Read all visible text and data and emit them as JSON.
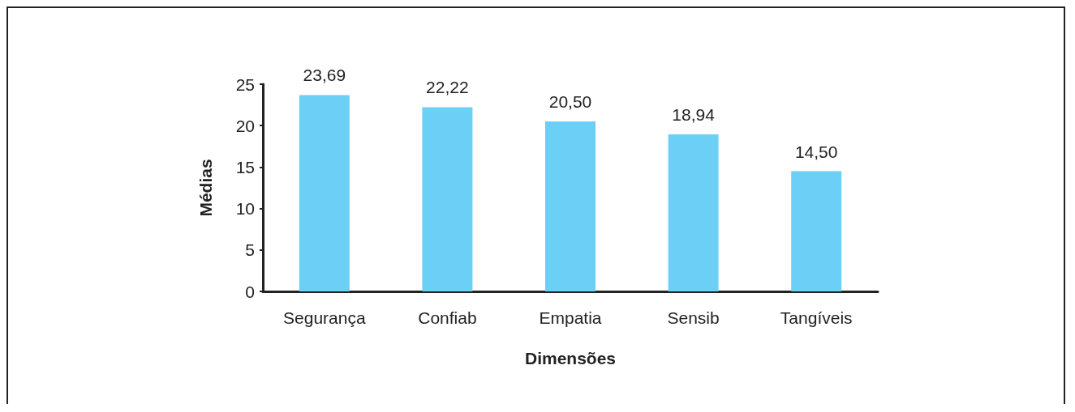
{
  "chart_data": {
    "type": "bar",
    "xlabel": "Dimensões",
    "ylabel": "Médias",
    "categories": [
      "Segurança",
      "Confiab",
      "Empatia",
      "Sensib",
      "Tangíveis"
    ],
    "values": [
      23.69,
      22.22,
      20.5,
      18.94,
      14.5
    ],
    "value_labels": [
      "23,69",
      "22,22",
      "20,50",
      "18,94",
      "14,50"
    ],
    "color": "#6ccff6",
    "ylim": [
      0,
      25
    ],
    "yticks": [
      0,
      5,
      10,
      15,
      20,
      25
    ],
    "grid": false
  }
}
